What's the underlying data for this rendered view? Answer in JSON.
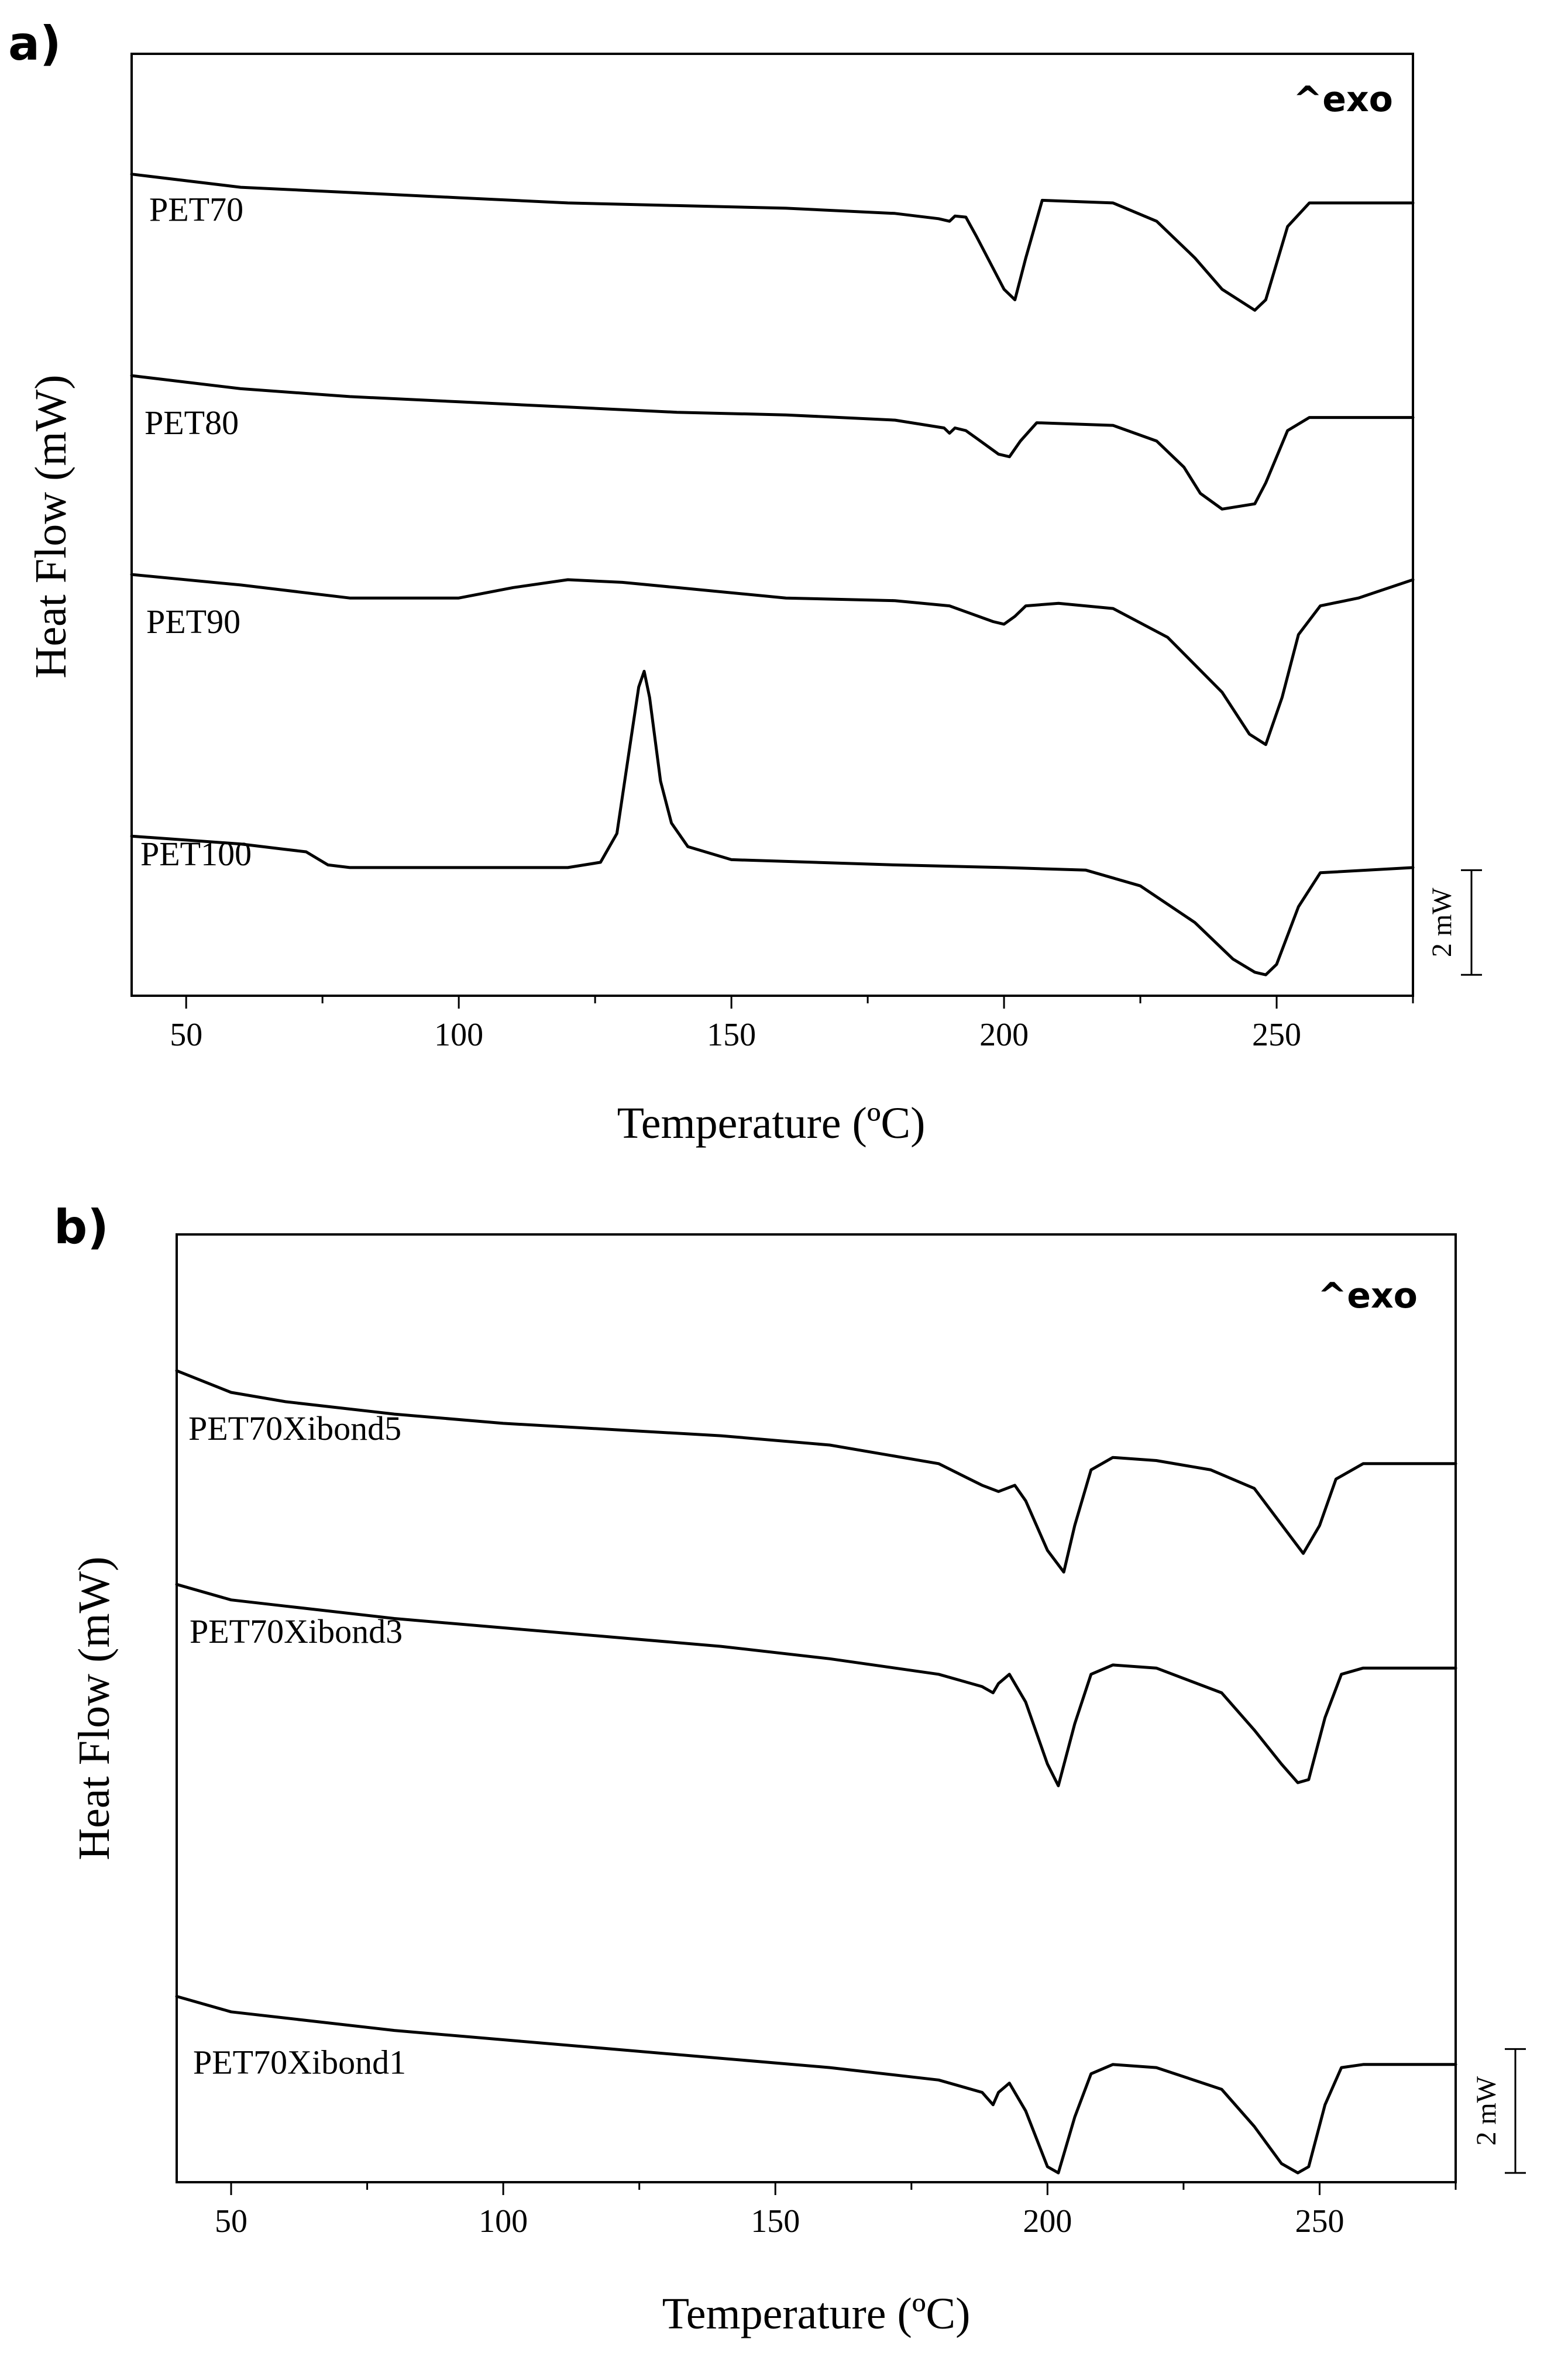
{
  "chart_data": [
    {
      "id": "a",
      "type": "line",
      "panel_label": "a)",
      "title": "",
      "xlabel": "Temperature (ºC)",
      "ylabel": "Heat Flow (mW)",
      "annotation": "^exo",
      "scale_bar_label": "2 mW",
      "scale_bar_value_mW": 2,
      "xlim": [
        40,
        275
      ],
      "ylim": [
        -0.5,
        17.5
      ],
      "xticks": [
        50,
        100,
        150,
        200,
        250
      ],
      "xtick_labels": [
        "50",
        "100",
        "150",
        "200",
        "250"
      ],
      "series": [
        {
          "name": "PET70",
          "label": "PET70",
          "x": [
            40,
            60,
            80,
            100,
            120,
            140,
            160,
            180,
            188,
            190,
            191,
            193,
            195,
            200,
            202,
            204,
            207,
            220,
            228,
            235,
            240,
            246,
            248,
            252,
            256,
            275
          ],
          "y": [
            15.2,
            14.95,
            14.85,
            14.75,
            14.65,
            14.6,
            14.55,
            14.45,
            14.35,
            14.3,
            14.4,
            14.38,
            14.0,
            13.0,
            12.8,
            13.6,
            14.7,
            14.65,
            14.3,
            13.6,
            13.0,
            12.6,
            12.8,
            14.2,
            14.65,
            14.65
          ]
        },
        {
          "name": "PET80",
          "label": "PET80",
          "x": [
            40,
            60,
            80,
            100,
            120,
            140,
            160,
            180,
            189,
            190,
            191,
            193,
            195,
            199,
            201,
            203,
            206,
            220,
            228,
            233,
            236,
            240,
            243,
            246,
            248,
            252,
            256,
            275
          ],
          "y": [
            11.35,
            11.1,
            10.95,
            10.85,
            10.75,
            10.65,
            10.6,
            10.5,
            10.35,
            10.25,
            10.35,
            10.3,
            10.15,
            9.85,
            9.8,
            10.1,
            10.45,
            10.4,
            10.1,
            9.6,
            9.1,
            8.8,
            8.85,
            8.9,
            9.3,
            10.3,
            10.55,
            10.55
          ]
        },
        {
          "name": "PET90",
          "label": "PET90",
          "x": [
            40,
            60,
            80,
            100,
            110,
            120,
            130,
            140,
            160,
            180,
            190,
            198,
            200,
            202,
            204,
            210,
            220,
            230,
            240,
            245,
            248,
            251,
            254,
            258,
            265,
            275
          ],
          "y": [
            7.55,
            7.35,
            7.1,
            7.1,
            7.3,
            7.45,
            7.4,
            7.3,
            7.1,
            7.05,
            6.95,
            6.65,
            6.6,
            6.75,
            6.95,
            7.0,
            6.9,
            6.35,
            5.3,
            4.5,
            4.3,
            5.2,
            6.4,
            6.95,
            7.1,
            7.45
          ]
        },
        {
          "name": "PET100",
          "label": "PET100",
          "x": [
            40,
            60,
            68,
            72,
            76,
            80,
            100,
            120,
            126,
            129,
            131,
            133,
            134,
            135,
            137,
            139,
            142,
            150,
            180,
            200,
            215,
            225,
            235,
            242,
            246,
            248,
            250,
            254,
            258,
            275
          ],
          "y": [
            2.55,
            2.4,
            2.3,
            2.25,
            2.0,
            1.95,
            1.95,
            1.95,
            2.05,
            2.6,
            4.0,
            5.4,
            5.7,
            5.2,
            3.6,
            2.8,
            2.35,
            2.1,
            2.0,
            1.95,
            1.9,
            1.6,
            0.9,
            0.2,
            -0.05,
            -0.1,
            0.1,
            1.2,
            1.85,
            1.95
          ]
        }
      ]
    },
    {
      "id": "b",
      "type": "line",
      "panel_label": "b)",
      "title": "",
      "xlabel": "Temperature (ºC)",
      "ylabel": "Heat Flow (mW)",
      "annotation": "^exo",
      "scale_bar_label": "2 mW",
      "scale_bar_value_mW": 2,
      "xlim": [
        40,
        275
      ],
      "ylim": [
        -0.3,
        15.0
      ],
      "xticks": [
        50,
        100,
        150,
        200,
        250
      ],
      "xtick_labels": [
        "50",
        "100",
        "150",
        "200",
        "250"
      ],
      "series": [
        {
          "name": "PET70Xibond5",
          "label": "PET70Xibond5",
          "x": [
            40,
            50,
            60,
            80,
            100,
            120,
            140,
            160,
            180,
            188,
            191,
            194,
            196,
            200,
            203,
            205,
            208,
            212,
            220,
            230,
            238,
            244,
            247,
            250,
            253,
            258,
            275
          ],
          "y": [
            12.8,
            12.45,
            12.3,
            12.1,
            11.95,
            11.85,
            11.75,
            11.6,
            11.3,
            10.95,
            10.85,
            10.95,
            10.7,
            9.9,
            9.55,
            10.3,
            11.2,
            11.4,
            11.35,
            11.2,
            10.9,
            10.2,
            9.85,
            10.3,
            11.05,
            11.3,
            11.3
          ]
        },
        {
          "name": "PET70Xibond3",
          "label": "PET70Xibond3",
          "x": [
            40,
            50,
            60,
            80,
            100,
            120,
            140,
            160,
            180,
            188,
            190,
            191,
            193,
            196,
            200,
            202,
            205,
            208,
            212,
            220,
            232,
            238,
            243,
            246,
            248,
            251,
            254,
            258,
            275
          ],
          "y": [
            9.35,
            9.1,
            9.0,
            8.8,
            8.65,
            8.5,
            8.35,
            8.15,
            7.9,
            7.7,
            7.6,
            7.75,
            7.9,
            7.45,
            6.45,
            6.1,
            7.1,
            7.9,
            8.05,
            8.0,
            7.6,
            7.0,
            6.45,
            6.15,
            6.2,
            7.2,
            7.9,
            8.0,
            8.0
          ]
        },
        {
          "name": "PET70Xibond1",
          "label": "PET70Xibond1",
          "x": [
            40,
            50,
            60,
            80,
            100,
            120,
            140,
            160,
            180,
            188,
            190,
            191,
            193,
            196,
            200,
            202,
            205,
            208,
            212,
            220,
            232,
            238,
            243,
            246,
            248,
            251,
            254,
            258,
            275
          ],
          "y": [
            2.7,
            2.45,
            2.35,
            2.15,
            2.0,
            1.85,
            1.7,
            1.55,
            1.35,
            1.15,
            0.95,
            1.15,
            1.3,
            0.85,
            -0.05,
            -0.15,
            0.75,
            1.45,
            1.6,
            1.55,
            1.2,
            0.6,
            0.0,
            -0.15,
            -0.05,
            0.95,
            1.55,
            1.6,
            1.6
          ]
        }
      ]
    }
  ]
}
